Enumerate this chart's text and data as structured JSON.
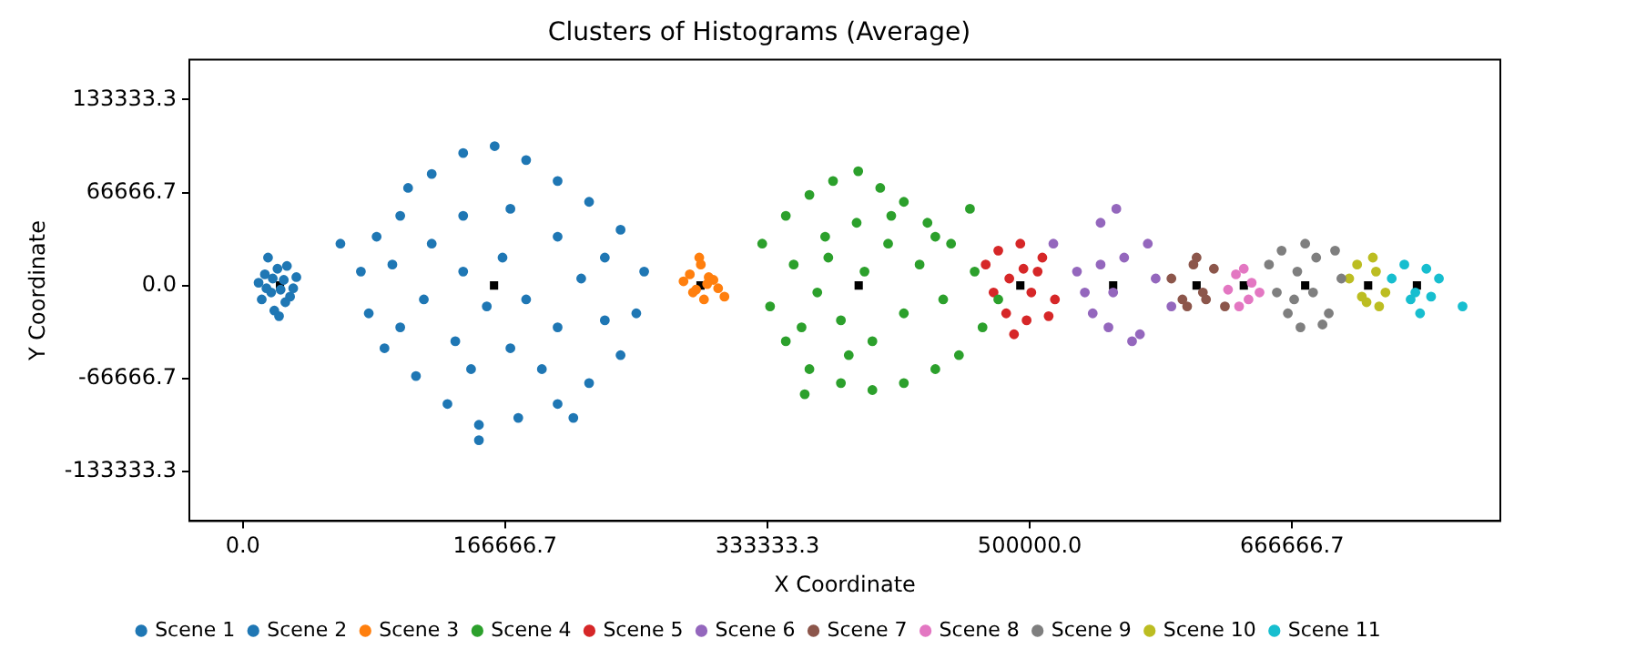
{
  "chart_data": {
    "type": "scatter",
    "title": "Clusters of Histograms (Average)",
    "xlabel": "X Coordinate",
    "ylabel": "Y Coordinate",
    "xlim": [
      -34000,
      799000
    ],
    "ylim": [
      -169000,
      162000
    ],
    "xticks": [
      {
        "value": 0,
        "label": "0.0"
      },
      {
        "value": 166666.7,
        "label": "166666.7"
      },
      {
        "value": 333333.3,
        "label": "333333.3"
      },
      {
        "value": 500000,
        "label": "500000.0"
      },
      {
        "value": 666666.7,
        "label": "666666.7"
      }
    ],
    "yticks": [
      {
        "value": -133333.3,
        "label": "-133333.3"
      },
      {
        "value": -66666.7,
        "label": "-66666.7"
      },
      {
        "value": 0,
        "label": "0.0"
      },
      {
        "value": 66666.7,
        "label": "66666.7"
      },
      {
        "value": 133333.3,
        "label": "133333.3"
      }
    ],
    "grid": false,
    "legend": "bottom",
    "marker": "circle",
    "series": [
      {
        "name": "Scene 1",
        "color": "#1f77b4",
        "x": [
          10000,
          14000,
          18000,
          22000,
          26000,
          30000,
          34000,
          12000,
          20000,
          28000,
          16000,
          24000,
          32000,
          19000,
          27000,
          15000,
          23000
        ],
        "values": [
          2000,
          8000,
          -5000,
          12000,
          4000,
          -8000,
          6000,
          -10000,
          -18000,
          14000,
          20000,
          -3000,
          -2000,
          5000,
          -12000,
          -2000,
          -22000
        ]
      },
      {
        "name": "Scene 2",
        "color": "#1f77b4",
        "x": [
          62000,
          100000,
          120000,
          140000,
          160000,
          180000,
          200000,
          220000,
          240000,
          255000,
          250000,
          240000,
          220000,
          200000,
          175000,
          150000,
          130000,
          110000,
          90000,
          80000,
          75000,
          85000,
          120000,
          140000,
          170000,
          200000,
          215000,
          200000,
          170000,
          135000,
          115000,
          140000,
          155000,
          180000,
          165000,
          145000,
          190000,
          230000,
          100000,
          95000,
          230000,
          150000,
          210000,
          105000
        ],
        "values": [
          30000,
          50000,
          80000,
          95000,
          100000,
          90000,
          75000,
          60000,
          40000,
          10000,
          -20000,
          -50000,
          -70000,
          -85000,
          -95000,
          -100000,
          -85000,
          -65000,
          -45000,
          -20000,
          10000,
          35000,
          30000,
          50000,
          55000,
          35000,
          5000,
          -30000,
          -45000,
          -40000,
          -10000,
          10000,
          -15000,
          -10000,
          20000,
          -60000,
          -60000,
          -25000,
          -30000,
          15000,
          20000,
          -111000,
          -95000,
          70000
        ]
      },
      {
        "name": "Scene 3",
        "color": "#ff7f0e",
        "x": [
          280000,
          286000,
          291000,
          296000,
          302000,
          284000,
          293000,
          299000,
          288000,
          306000,
          290000,
          295000
        ],
        "values": [
          3000,
          -5000,
          15000,
          6000,
          -2000,
          8000,
          -10000,
          4000,
          -3000,
          -8000,
          20000,
          1000
        ]
      },
      {
        "name": "Scene 4",
        "color": "#2ca02c",
        "x": [
          330000,
          345000,
          360000,
          375000,
          391000,
          405000,
          420000,
          435000,
          450000,
          465000,
          480000,
          470000,
          455000,
          440000,
          420000,
          400000,
          380000,
          360000,
          345000,
          335000,
          350000,
          370000,
          390000,
          410000,
          430000,
          445000,
          380000,
          400000,
          365000,
          420000,
          395000,
          355000,
          440000,
          372000,
          412000,
          385000,
          357000,
          462000
        ],
        "values": [
          30000,
          50000,
          65000,
          75000,
          82000,
          70000,
          60000,
          45000,
          30000,
          10000,
          -10000,
          -30000,
          -50000,
          -60000,
          -70000,
          -75000,
          -70000,
          -60000,
          -40000,
          -15000,
          15000,
          35000,
          45000,
          30000,
          15000,
          -10000,
          -25000,
          -40000,
          -5000,
          -20000,
          10000,
          -30000,
          35000,
          20000,
          50000,
          -50000,
          -78000,
          55000
        ]
      },
      {
        "name": "Scene 5",
        "color": "#d62728",
        "x": [
          472000,
          480000,
          487000,
          494000,
          501000,
          508000,
          516000,
          485000,
          498000,
          505000,
          490000,
          477000,
          512000,
          496000
        ],
        "values": [
          15000,
          25000,
          5000,
          30000,
          -5000,
          20000,
          -10000,
          -20000,
          -25000,
          10000,
          -35000,
          -5000,
          -22000,
          12000
        ]
      },
      {
        "name": "Scene 6",
        "color": "#9467bd",
        "x": [
          515000,
          530000,
          545000,
          553000,
          560000,
          575000,
          590000,
          540000,
          565000,
          550000,
          580000,
          535000,
          570000,
          555000,
          545000
        ],
        "values": [
          30000,
          10000,
          45000,
          -5000,
          20000,
          30000,
          -15000,
          -20000,
          -40000,
          -30000,
          5000,
          -5000,
          -35000,
          55000,
          15000
        ]
      },
      {
        "name": "Scene 7",
        "color": "#8c564b",
        "x": [
          590000,
          597000,
          604000,
          610000,
          617000,
          624000,
          600000,
          612000,
          606000
        ],
        "values": [
          5000,
          -10000,
          15000,
          -5000,
          12000,
          -15000,
          -15000,
          -10000,
          20000
        ]
      },
      {
        "name": "Scene 8",
        "color": "#e377c2",
        "x": [
          626000,
          631000,
          636000,
          641000,
          646000,
          633000,
          639000
        ],
        "values": [
          -3000,
          8000,
          12000,
          2000,
          -5000,
          -15000,
          -10000
        ]
      },
      {
        "name": "Scene 9",
        "color": "#7f7f7f",
        "x": [
          652000,
          660000,
          668000,
          675000,
          682000,
          690000,
          698000,
          664000,
          672000,
          686000,
          657000,
          694000,
          680000,
          670000
        ],
        "values": [
          15000,
          25000,
          -10000,
          30000,
          20000,
          -20000,
          5000,
          -20000,
          -30000,
          -28000,
          -5000,
          25000,
          -5000,
          10000
        ]
      },
      {
        "name": "Scene 10",
        "color": "#bcbd22",
        "x": [
          703000,
          708000,
          714000,
          720000,
          726000,
          711000,
          718000,
          722000
        ],
        "values": [
          5000,
          15000,
          -12000,
          10000,
          -5000,
          -8000,
          20000,
          -15000
        ]
      },
      {
        "name": "Scene 11",
        "color": "#17becf",
        "x": [
          730000,
          738000,
          745000,
          752000,
          760000,
          742000,
          755000,
          748000,
          775000
        ],
        "values": [
          5000,
          15000,
          -5000,
          12000,
          5000,
          -10000,
          -8000,
          -20000,
          -15000
        ]
      },
      {
        "color": "#000000",
        "marker": "square",
        "x": [
          23600,
          159600,
          290800,
          391300,
          494000,
          553000,
          606000,
          636000,
          675000,
          715000,
          746000
        ],
        "values": [
          0,
          0,
          0,
          0,
          0,
          0,
          0,
          0,
          0,
          0,
          0
        ]
      }
    ]
  }
}
